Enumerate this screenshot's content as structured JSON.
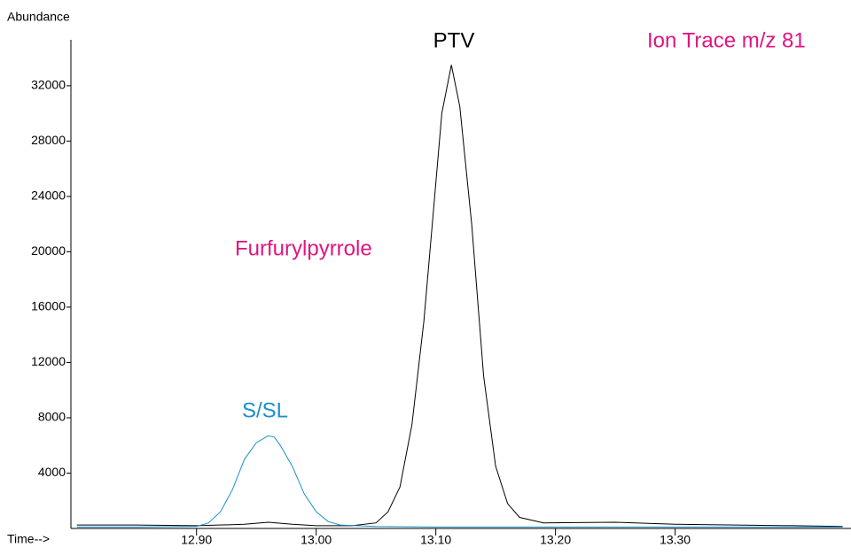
{
  "chart_data": {
    "type": "line",
    "y_label": "Abundance",
    "x_label": "Time-->",
    "annotations": [
      {
        "text": "PTV",
        "color": "#000000"
      },
      {
        "text": "Ion Trace m/z 81",
        "color": "#e0157f"
      },
      {
        "text": "Furfurylpyrrole",
        "color": "#e0157f"
      },
      {
        "text": "S/SL",
        "color": "#1a8fc9"
      }
    ],
    "series": [
      {
        "name": "PTV",
        "color": "#000000",
        "x": [
          12.8,
          12.85,
          12.9,
          12.94,
          12.96,
          12.98,
          13.0,
          13.03,
          13.05,
          13.06,
          13.07,
          13.08,
          13.09,
          13.1,
          13.105,
          13.113,
          13.12,
          13.13,
          13.14,
          13.15,
          13.16,
          13.17,
          13.19,
          13.25,
          13.3,
          13.35,
          13.4,
          13.44
        ],
        "values": [
          250,
          250,
          200,
          300,
          450,
          300,
          200,
          200,
          400,
          1200,
          3000,
          7500,
          15000,
          25000,
          30000,
          33500,
          30500,
          22000,
          11000,
          4500,
          1800,
          800,
          400,
          450,
          300,
          250,
          200,
          150
        ]
      },
      {
        "name": "S/SL",
        "color": "#1a8fc9",
        "x": [
          12.8,
          12.85,
          12.9,
          12.91,
          12.92,
          12.93,
          12.94,
          12.95,
          12.96,
          12.965,
          12.97,
          12.98,
          12.99,
          13.0,
          13.01,
          13.02,
          13.05,
          13.1,
          13.2,
          13.3,
          13.44
        ],
        "values": [
          100,
          100,
          150,
          400,
          1200,
          2800,
          5000,
          6200,
          6700,
          6600,
          6000,
          4500,
          2500,
          1200,
          500,
          250,
          150,
          100,
          100,
          100,
          100
        ]
      }
    ],
    "xlim": [
      12.795,
      13.447
    ],
    "ylim": [
      0,
      35000
    ],
    "xticks": [
      {
        "value": 12.9,
        "label": "12.90"
      },
      {
        "value": 13.0,
        "label": "13.00"
      },
      {
        "value": 13.1,
        "label": "13.10"
      },
      {
        "value": 13.2,
        "label": "13.20"
      },
      {
        "value": 13.3,
        "label": "13.30"
      }
    ],
    "yticks": [
      4000,
      8000,
      12000,
      16000,
      20000,
      24000,
      28000,
      32000
    ]
  }
}
